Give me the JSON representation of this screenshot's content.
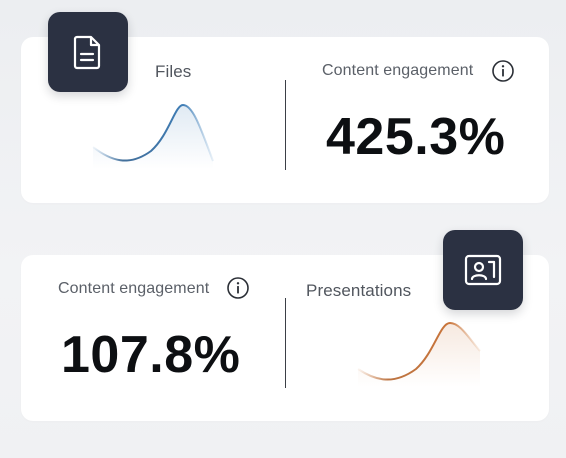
{
  "card_top": {
    "files_label": "Files",
    "metric_label": "Content engagement",
    "metric_value": "425.3%",
    "icon": "document-icon",
    "sparkline_color": "#3f7db5"
  },
  "card_bottom": {
    "metric_label": "Content engagement",
    "metric_value": "107.8%",
    "presentations_label": "Presentations",
    "icon": "presentation-icon",
    "sparkline_color": "#c9743a"
  },
  "colors": {
    "tile_background": "#2b3142",
    "card_background": "#ffffff",
    "page_background": "#eef0f2"
  }
}
